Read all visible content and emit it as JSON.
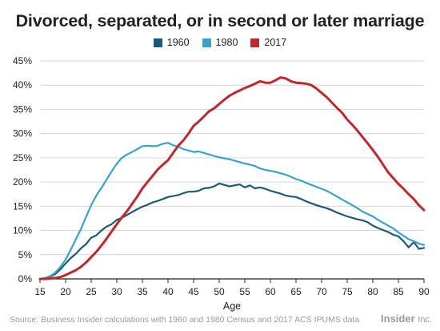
{
  "chart_data": {
    "type": "line",
    "title": "Divorced, separated, or in second or later marriage",
    "xlabel": "Age",
    "ylabel": "",
    "xlim": [
      15,
      90
    ],
    "ylim": [
      0,
      45
    ],
    "x_ticks": [
      15,
      20,
      25,
      30,
      35,
      40,
      45,
      50,
      55,
      60,
      65,
      70,
      75,
      80,
      85,
      90
    ],
    "y_ticks": [
      0,
      5,
      10,
      15,
      20,
      25,
      30,
      35,
      40,
      45
    ],
    "y_tick_labels": [
      "0%",
      "5%",
      "10%",
      "15%",
      "20%",
      "25%",
      "30%",
      "35%",
      "40%",
      "45%"
    ],
    "grid": "horizontal",
    "legend_position": "top",
    "series": [
      {
        "name": "1960",
        "color": "#1a5a7a",
        "x": [
          15,
          16,
          17,
          18,
          19,
          20,
          21,
          22,
          23,
          24,
          25,
          26,
          27,
          28,
          29,
          30,
          31,
          32,
          33,
          34,
          35,
          36,
          37,
          38,
          39,
          40,
          41,
          42,
          43,
          44,
          45,
          46,
          47,
          48,
          49,
          50,
          51,
          52,
          53,
          54,
          55,
          56,
          57,
          58,
          59,
          60,
          61,
          62,
          63,
          64,
          65,
          66,
          67,
          68,
          69,
          70,
          71,
          72,
          73,
          74,
          75,
          76,
          77,
          78,
          79,
          80,
          81,
          82,
          83,
          84,
          85,
          86,
          87,
          88,
          89,
          90
        ],
        "y": [
          0,
          0.1,
          0.5,
          1,
          2,
          3.2,
          4.3,
          5.2,
          6.3,
          7.2,
          8.5,
          9,
          10,
          10.8,
          11.3,
          12.2,
          12.6,
          13.2,
          13.8,
          14.4,
          14.9,
          15.3,
          15.8,
          16.1,
          16.5,
          16.9,
          17.1,
          17.3,
          17.7,
          18,
          18,
          18.2,
          18.7,
          18.8,
          19.1,
          19.7,
          19.4,
          19.1,
          19.3,
          19.5,
          18.9,
          19.3,
          18.7,
          18.9,
          18.6,
          18.2,
          17.9,
          17.6,
          17.2,
          17,
          16.9,
          16.5,
          16,
          15.6,
          15.2,
          14.9,
          14.6,
          14.2,
          13.7,
          13.3,
          12.9,
          12.6,
          12.3,
          12.1,
          11.7,
          11,
          10.5,
          10.1,
          9.7,
          9.1,
          8.8,
          7.8,
          6.5,
          7.6,
          6.2,
          6.4
        ]
      },
      {
        "name": "1980",
        "color": "#34a3d1",
        "x": [
          15,
          16,
          17,
          18,
          19,
          20,
          21,
          22,
          23,
          24,
          25,
          26,
          27,
          28,
          29,
          30,
          31,
          32,
          33,
          34,
          35,
          36,
          37,
          38,
          39,
          40,
          41,
          42,
          43,
          44,
          45,
          46,
          47,
          48,
          49,
          50,
          51,
          52,
          53,
          54,
          55,
          56,
          57,
          58,
          59,
          60,
          61,
          62,
          63,
          64,
          65,
          66,
          67,
          68,
          69,
          70,
          71,
          72,
          73,
          74,
          75,
          76,
          77,
          78,
          79,
          80,
          81,
          82,
          83,
          84,
          85,
          86,
          87,
          88,
          89,
          90
        ],
        "y": [
          0,
          0.2,
          0.6,
          1.3,
          2.5,
          4,
          6,
          8.2,
          10.3,
          12.8,
          15.2,
          17.2,
          18.8,
          20.5,
          22.2,
          23.8,
          25,
          25.7,
          26.2,
          26.8,
          27.4,
          27.5,
          27.4,
          27.5,
          27.9,
          28.1,
          27.6,
          27.3,
          26.8,
          26.5,
          26.2,
          26.3,
          26,
          25.7,
          25.4,
          25.1,
          24.9,
          24.7,
          24.4,
          24.1,
          23.8,
          23.6,
          23.3,
          22.8,
          22.5,
          22.3,
          22.1,
          21.8,
          21.5,
          21.1,
          20.6,
          20.3,
          19.8,
          19.4,
          19,
          18.6,
          18.2,
          17.6,
          17,
          16.4,
          15.8,
          15.2,
          14.6,
          13.9,
          13.4,
          12.9,
          12.2,
          11.6,
          11,
          10.4,
          9.6,
          8.9,
          8.2,
          7.8,
          7.3,
          7
        ]
      },
      {
        "name": "2017",
        "color": "#c1272d",
        "x": [
          15,
          16,
          17,
          18,
          19,
          20,
          21,
          22,
          23,
          24,
          25,
          26,
          27,
          28,
          29,
          30,
          31,
          32,
          33,
          34,
          35,
          36,
          37,
          38,
          39,
          40,
          41,
          42,
          43,
          44,
          45,
          46,
          47,
          48,
          49,
          50,
          51,
          52,
          53,
          54,
          55,
          56,
          57,
          58,
          59,
          60,
          61,
          62,
          63,
          64,
          65,
          66,
          67,
          68,
          69,
          70,
          71,
          72,
          73,
          74,
          75,
          76,
          77,
          78,
          79,
          80,
          81,
          82,
          83,
          84,
          85,
          86,
          87,
          88,
          89,
          90
        ],
        "y": [
          0,
          0,
          0.1,
          0.2,
          0.4,
          0.8,
          1.3,
          1.8,
          2.5,
          3.4,
          4.5,
          5.6,
          6.9,
          8.3,
          9.8,
          11.3,
          12.7,
          14,
          15.5,
          17,
          18.7,
          20,
          21.3,
          22.6,
          23.6,
          24.5,
          26,
          27.5,
          28.6,
          30,
          31.6,
          32.5,
          33.5,
          34.6,
          35.2,
          36.1,
          37,
          37.8,
          38.4,
          38.9,
          39.4,
          39.8,
          40.3,
          40.8,
          40.5,
          40.5,
          41,
          41.6,
          41.4,
          40.8,
          40.5,
          40.4,
          40.3,
          40,
          39.3,
          38.4,
          37.5,
          36.4,
          35.3,
          34.3,
          32.9,
          31.8,
          30.6,
          29.3,
          28,
          26.6,
          25.2,
          23.6,
          22,
          20.8,
          19.6,
          18.6,
          17.5,
          16.5,
          15.2,
          14.2
        ]
      }
    ],
    "source": "Source: Business Insider calculations with 1960 and 1980 Census and 2017 ACS IPUMS data",
    "brand": {
      "name": "Insider",
      "suffix": "Inc."
    }
  }
}
